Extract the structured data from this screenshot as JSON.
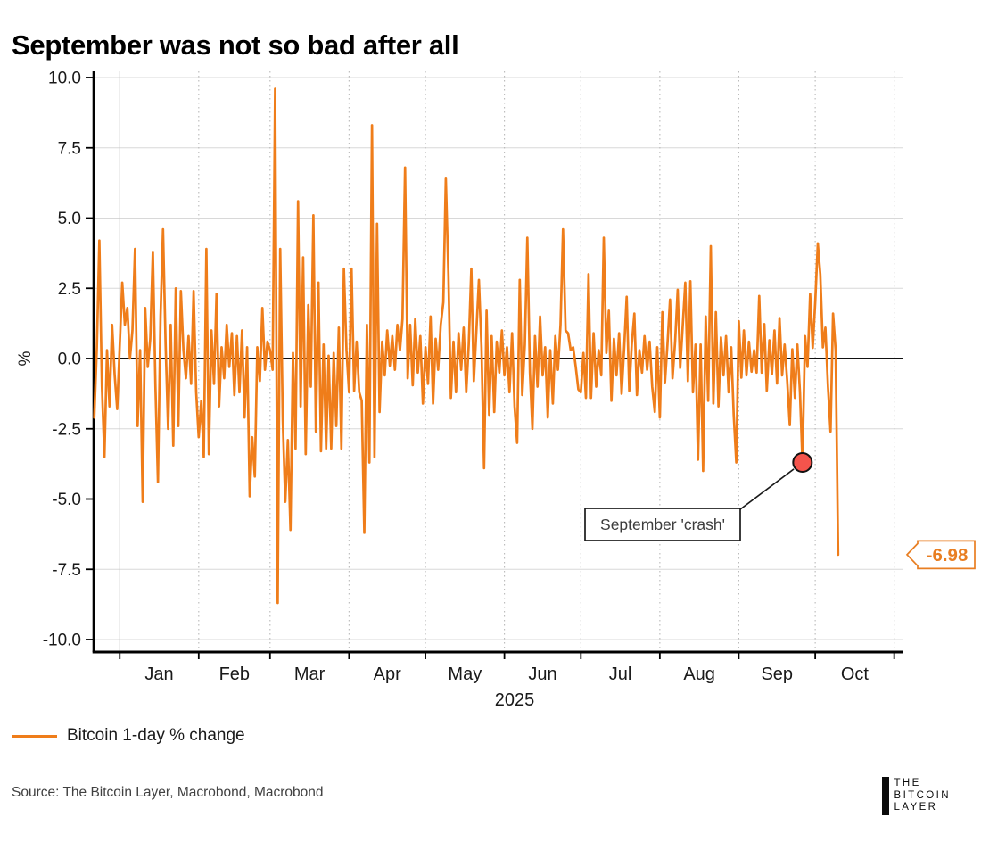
{
  "title": "September was not so bad after all",
  "chart_data": {
    "type": "line",
    "title": "September was not so bad after all",
    "ylabel": "%",
    "ylim": [
      -10.2,
      10.2
    ],
    "grid": true,
    "yticks": [
      {
        "value": 10.0,
        "label": "10.0"
      },
      {
        "value": 7.5,
        "label": "7.5"
      },
      {
        "value": 5.0,
        "label": "5.0"
      },
      {
        "value": 2.5,
        "label": "2.5"
      },
      {
        "value": 0.0,
        "label": "0.0"
      },
      {
        "value": -2.5,
        "label": "-2.5"
      },
      {
        "value": -5.0,
        "label": "-5.0"
      },
      {
        "value": -7.5,
        "label": "-7.5"
      },
      {
        "value": -10.0,
        "label": "-10.0"
      }
    ],
    "x_axis": {
      "year_label": "2025",
      "month_labels": [
        "Jan",
        "Feb",
        "Mar",
        "Apr",
        "May",
        "Jun",
        "Jul",
        "Aug",
        "Sep",
        "Oct"
      ],
      "month_boundary_day_offsets": [
        10,
        41,
        69,
        100,
        130,
        161,
        191,
        222,
        253,
        283,
        314
      ]
    },
    "series": [
      {
        "name": "Bitcoin 1-day % change",
        "color": "#EF7D1A",
        "values": [
          -2.1,
          0.4,
          4.2,
          -1.0,
          -3.5,
          0.3,
          -1.7,
          1.2,
          -0.6,
          -1.8,
          0.5,
          2.7,
          1.2,
          1.8,
          0.0,
          1.0,
          3.9,
          -2.4,
          0.3,
          -5.1,
          1.8,
          -0.3,
          0.7,
          3.8,
          -1.0,
          -4.4,
          1.5,
          4.6,
          0.5,
          -2.5,
          1.2,
          -3.1,
          2.5,
          -2.4,
          2.4,
          0.3,
          -0.7,
          0.8,
          -0.9,
          2.4,
          -1.2,
          -2.8,
          -1.5,
          -3.5,
          3.9,
          -3.4,
          1.0,
          -0.9,
          2.3,
          -1.7,
          0.4,
          -0.7,
          1.2,
          -0.3,
          0.9,
          -1.3,
          0.8,
          -1.2,
          1.0,
          -2.1,
          0.4,
          -4.9,
          -2.8,
          -4.2,
          0.4,
          -0.8,
          1.8,
          -0.4,
          0.6,
          0.3,
          -0.4,
          9.6,
          -8.7,
          3.9,
          -2.2,
          -5.1,
          -2.9,
          -6.1,
          0.2,
          -3.2,
          5.6,
          -1.7,
          3.6,
          -3.4,
          1.9,
          -1.0,
          5.1,
          -2.6,
          2.7,
          -3.3,
          0.5,
          -3.2,
          0.1,
          -3.2,
          0.2,
          -2.4,
          1.1,
          -3.2,
          3.2,
          0.3,
          -1.2,
          3.2,
          -1.15,
          0.6,
          -1.2,
          -1.5,
          -6.2,
          1.2,
          -3.7,
          8.3,
          -3.5,
          4.8,
          -1.9,
          0.6,
          -0.6,
          1.0,
          -0.25,
          0.8,
          -0.4,
          1.2,
          0.3,
          1.4,
          6.8,
          -0.7,
          1.2,
          -0.95,
          1.4,
          -0.5,
          0.8,
          -1.6,
          0.4,
          -0.9,
          1.5,
          -1.6,
          0.7,
          -0.4,
          1.2,
          2.0,
          6.4,
          3.0,
          -1.4,
          0.6,
          -1.2,
          0.9,
          -0.4,
          1.1,
          -1.2,
          0.5,
          3.2,
          -0.8,
          1.0,
          2.8,
          0.4,
          -3.9,
          1.7,
          -2.0,
          0.8,
          -1.9,
          0.6,
          -0.5,
          1.0,
          -0.6,
          0.4,
          -1.2,
          0.9,
          -1.7,
          -3.0,
          2.8,
          -1.3,
          0.5,
          4.3,
          -0.5,
          -2.5,
          0.8,
          -1.0,
          1.5,
          -0.6,
          0.4,
          -2.1,
          0.3,
          -1.6,
          0.8,
          -0.4,
          1.2,
          4.6,
          1.0,
          0.9,
          0.3,
          0.4,
          -0.3,
          -1.1,
          -1.2,
          0.2,
          -1.4,
          3.0,
          -1.4,
          0.9,
          -1.0,
          0.3,
          -0.6,
          4.3,
          0.2,
          1.7,
          -1.5,
          0.7,
          -0.6,
          0.9,
          -1.25,
          0.4,
          2.2,
          -1.15,
          0.5,
          1.6,
          -1.3,
          0.3,
          -0.5,
          0.8,
          -0.4,
          0.6,
          -1.0,
          -1.9,
          0.4,
          -2.1,
          1.65,
          -0.85,
          0.5,
          2.1,
          -0.7,
          0.6,
          2.45,
          -0.33,
          1.2,
          2.7,
          -0.8,
          2.75,
          -1.2,
          0.5,
          -3.6,
          0.5,
          -4.0,
          1.5,
          -1.5,
          4.0,
          -1.6,
          1.65,
          -1.7,
          0.75,
          -0.6,
          0.8,
          -1.2,
          0.4,
          -2.0,
          -3.7,
          1.33,
          -0.68,
          1.0,
          -0.6,
          0.6,
          -0.47,
          0.3,
          -0.5,
          2.23,
          -0.5,
          1.23,
          -1.15,
          0.65,
          -0.56,
          1.0,
          -0.89,
          1.44,
          -0.6,
          0.5,
          -0.8,
          -2.37,
          0.33,
          -1.4,
          0.5,
          -1.2,
          -3.7,
          0.8,
          -0.3,
          2.3,
          0.38,
          2.0,
          4.1,
          3.0,
          0.4,
          1.1,
          -1.0,
          -2.6,
          1.6,
          0.3,
          -6.98
        ]
      }
    ],
    "annotations": {
      "crash_callout": {
        "text": "September 'crash'",
        "marker_index": 278,
        "marker_value": -3.7,
        "marker_color": "#F4544C"
      },
      "last_value_callout": {
        "text": "-6.98",
        "value": -6.98,
        "color": "#E87E22"
      }
    },
    "legend_position": "bottom-left"
  },
  "legend": {
    "label": "Bitcoin 1-day % change",
    "swatch_color": "#EF7D1A"
  },
  "source": {
    "text": "Source: The Bitcoin Layer, Macrobond, Macrobond"
  },
  "logo": {
    "lines": [
      "THE",
      "BITCOIN",
      "LAYER"
    ]
  }
}
